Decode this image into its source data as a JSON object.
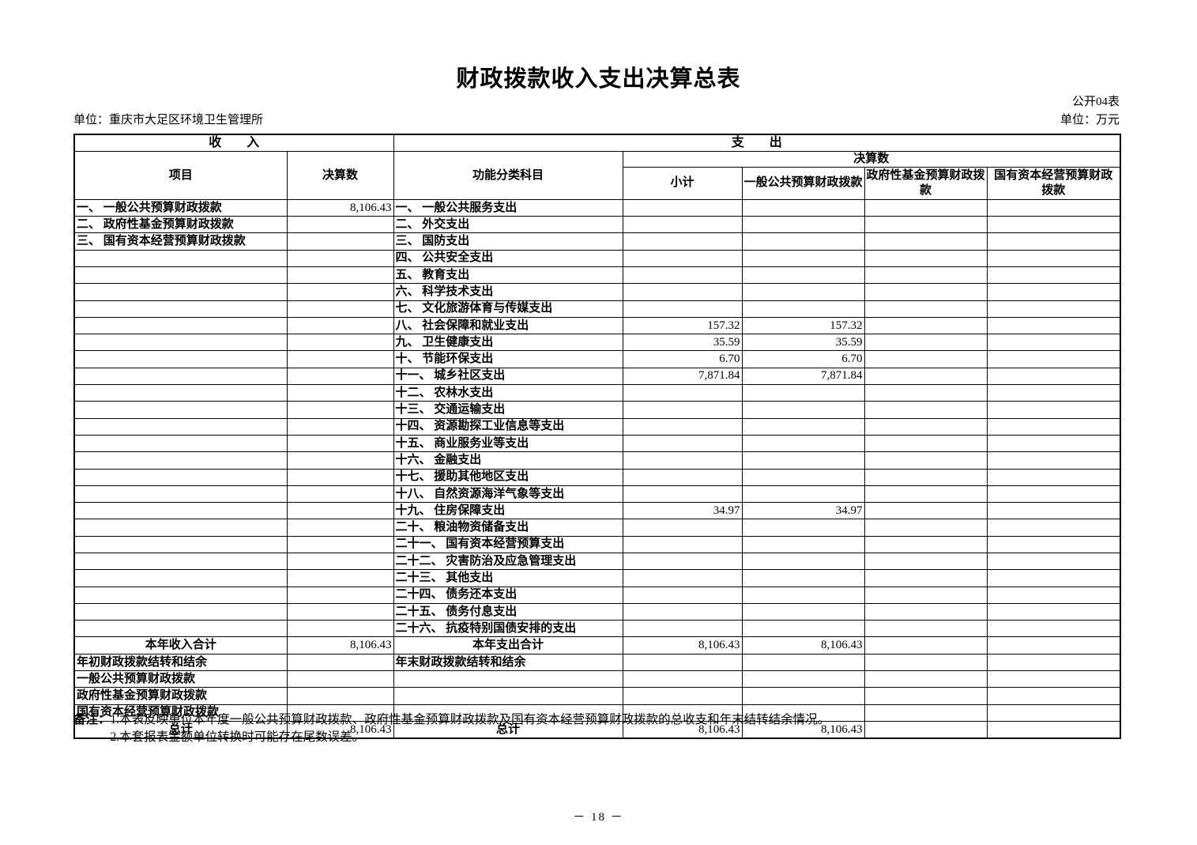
{
  "page": {
    "title": "财政拨款收入支出决算总表",
    "table_code": "公开04表",
    "unit_left": "单位：重庆市大足区环境卫生管理所",
    "unit_right": "单位：万元",
    "page_number": "－ 18 －"
  },
  "notes": {
    "label": "备注：",
    "lines": [
      "1.本表反映单位本年度一般公共预算财政拨款、政府性基金预算财政拨款及国有资本经营预算财政拨款的总收支和年末结转结余情况。",
      "2.本套报表金额单位转换时可能存在尾数误差。"
    ]
  },
  "table": {
    "header": {
      "income_group": "收　　入",
      "expenditure_group": "支　　出",
      "income_item_col": "项目",
      "income_value_col": "决算数",
      "exp_item_col": "功能分类科目",
      "exp_value_group": "决算数",
      "exp_subcols": [
        "小计",
        "一般公共预算财政拨款",
        "政府性基金预算财政拨款",
        "国有资本经营预算财政拨款"
      ]
    },
    "rows": [
      {
        "cells": [
          "一、 一般公共预算财政拨款",
          "8,106.43",
          "一、 一般公共服务支出",
          "",
          "",
          "",
          ""
        ]
      },
      {
        "cells": [
          "二、 政府性基金预算财政拨款",
          "",
          "二、 外交支出",
          "",
          "",
          "",
          ""
        ]
      },
      {
        "cells": [
          "三、 国有资本经营预算财政拨款",
          "",
          "三、 国防支出",
          "",
          "",
          "",
          ""
        ]
      },
      {
        "cells": [
          "",
          "",
          "四、 公共安全支出",
          "",
          "",
          "",
          ""
        ]
      },
      {
        "cells": [
          "",
          "",
          "五、 教育支出",
          "",
          "",
          "",
          ""
        ]
      },
      {
        "cells": [
          "",
          "",
          "六、 科学技术支出",
          "",
          "",
          "",
          ""
        ]
      },
      {
        "cells": [
          "",
          "",
          "七、 文化旅游体育与传媒支出",
          "",
          "",
          "",
          ""
        ]
      },
      {
        "cells": [
          "",
          "",
          "八、 社会保障和就业支出",
          "157.32",
          "157.32",
          "",
          ""
        ]
      },
      {
        "cells": [
          "",
          "",
          "九、 卫生健康支出",
          "35.59",
          "35.59",
          "",
          ""
        ]
      },
      {
        "cells": [
          "",
          "",
          "十、 节能环保支出",
          "6.70",
          "6.70",
          "",
          ""
        ]
      },
      {
        "cells": [
          "",
          "",
          "十一、 城乡社区支出",
          "7,871.84",
          "7,871.84",
          "",
          ""
        ]
      },
      {
        "cells": [
          "",
          "",
          "十二、 农林水支出",
          "",
          "",
          "",
          ""
        ]
      },
      {
        "cells": [
          "",
          "",
          "十三、 交通运输支出",
          "",
          "",
          "",
          ""
        ]
      },
      {
        "cells": [
          "",
          "",
          "十四、 资源勘探工业信息等支出",
          "",
          "",
          "",
          ""
        ]
      },
      {
        "cells": [
          "",
          "",
          "十五、 商业服务业等支出",
          "",
          "",
          "",
          ""
        ]
      },
      {
        "cells": [
          "",
          "",
          "十六、 金融支出",
          "",
          "",
          "",
          ""
        ]
      },
      {
        "cells": [
          "",
          "",
          "十七、 援助其他地区支出",
          "",
          "",
          "",
          ""
        ]
      },
      {
        "cells": [
          "",
          "",
          "十八、 自然资源海洋气象等支出",
          "",
          "",
          "",
          ""
        ]
      },
      {
        "cells": [
          "",
          "",
          "十九、 住房保障支出",
          "34.97",
          "34.97",
          "",
          ""
        ]
      },
      {
        "cells": [
          "",
          "",
          "二十、 粮油物资储备支出",
          "",
          "",
          "",
          ""
        ]
      },
      {
        "cells": [
          "",
          "",
          "二十一、 国有资本经营预算支出",
          "",
          "",
          "",
          ""
        ]
      },
      {
        "cells": [
          "",
          "",
          "二十二、 灾害防治及应急管理支出",
          "",
          "",
          "",
          ""
        ]
      },
      {
        "cells": [
          "",
          "",
          "二十三、 其他支出",
          "",
          "",
          "",
          ""
        ]
      },
      {
        "cells": [
          "",
          "",
          "二十四、 债务还本支出",
          "",
          "",
          "",
          ""
        ]
      },
      {
        "cells": [
          "",
          "",
          "二十五、 债务付息支出",
          "",
          "",
          "",
          ""
        ]
      },
      {
        "cells": [
          "",
          "",
          "二十六、 抗疫特别国债安排的支出",
          "",
          "",
          "",
          ""
        ]
      },
      {
        "cells": [
          "本年收入合计",
          "8,106.43",
          "本年支出合计",
          "8,106.43",
          "8,106.43",
          "",
          ""
        ],
        "a0": "center",
        "a2": "center"
      },
      {
        "cells": [
          "年初财政拨款结转和结余",
          "",
          "年末财政拨款结转和结余",
          "",
          "",
          "",
          ""
        ]
      },
      {
        "cells": [
          "一般公共预算财政拨款",
          "",
          "",
          "",
          "",
          "",
          ""
        ],
        "a0": "indent"
      },
      {
        "cells": [
          "政府性基金预算财政拨款",
          "",
          "",
          "",
          "",
          "",
          ""
        ],
        "a0": "indent"
      },
      {
        "cells": [
          "国有资本经营预算财政拨款",
          "",
          "",
          "",
          "",
          "",
          ""
        ],
        "a0": "indent"
      },
      {
        "cells": [
          "总计",
          "8,106.43",
          "总计",
          "8,106.43",
          "8,106.43",
          "",
          ""
        ],
        "a0": "center",
        "a2": "center"
      }
    ]
  }
}
